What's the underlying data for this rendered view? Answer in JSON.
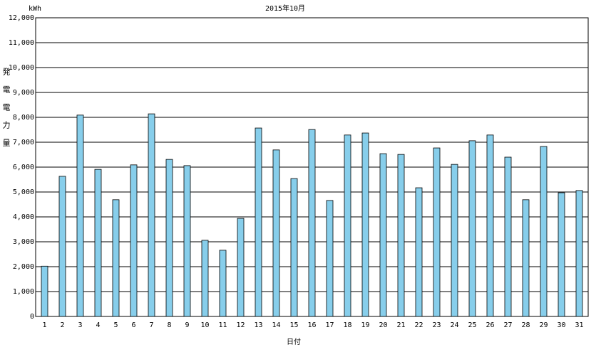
{
  "chart_data": {
    "type": "bar",
    "title": "2015年10月",
    "y_unit": "kWh",
    "ylabel": "発電電力量",
    "xlabel": "日付",
    "categories": [
      "1",
      "2",
      "3",
      "4",
      "5",
      "6",
      "7",
      "8",
      "9",
      "10",
      "11",
      "12",
      "13",
      "14",
      "15",
      "16",
      "17",
      "18",
      "19",
      "20",
      "21",
      "22",
      "23",
      "24",
      "25",
      "26",
      "27",
      "28",
      "29",
      "30",
      "31"
    ],
    "values": [
      2020,
      5630,
      8090,
      5910,
      4690,
      6090,
      8140,
      6310,
      6060,
      3060,
      2660,
      3940,
      7570,
      6690,
      5540,
      7510,
      4660,
      7290,
      7370,
      6540,
      6510,
      5170,
      6770,
      6110,
      7060,
      7290,
      6400,
      4690,
      6830,
      4970,
      5060
    ],
    "color": "#87ceeb",
    "ylim": [
      0,
      12000
    ],
    "yticks": [
      0,
      {
        "value": 1000,
        "label": "1,000"
      },
      {
        "value": 2000,
        "label": "2,000"
      },
      {
        "value": 3000,
        "label": "3,000"
      },
      {
        "value": 4000,
        "label": "4,000"
      },
      {
        "value": 5000,
        "label": "5,000"
      },
      {
        "value": 6000,
        "label": "6,000"
      },
      {
        "value": 7000,
        "label": "7,000"
      },
      {
        "value": 8000,
        "label": "8,000"
      },
      {
        "value": 9000,
        "label": "9,000"
      },
      {
        "value": 10000,
        "label": "10,000"
      },
      {
        "value": 11000,
        "label": "11,000"
      },
      {
        "value": 12000,
        "label": "12,000"
      }
    ],
    "grid": true
  }
}
